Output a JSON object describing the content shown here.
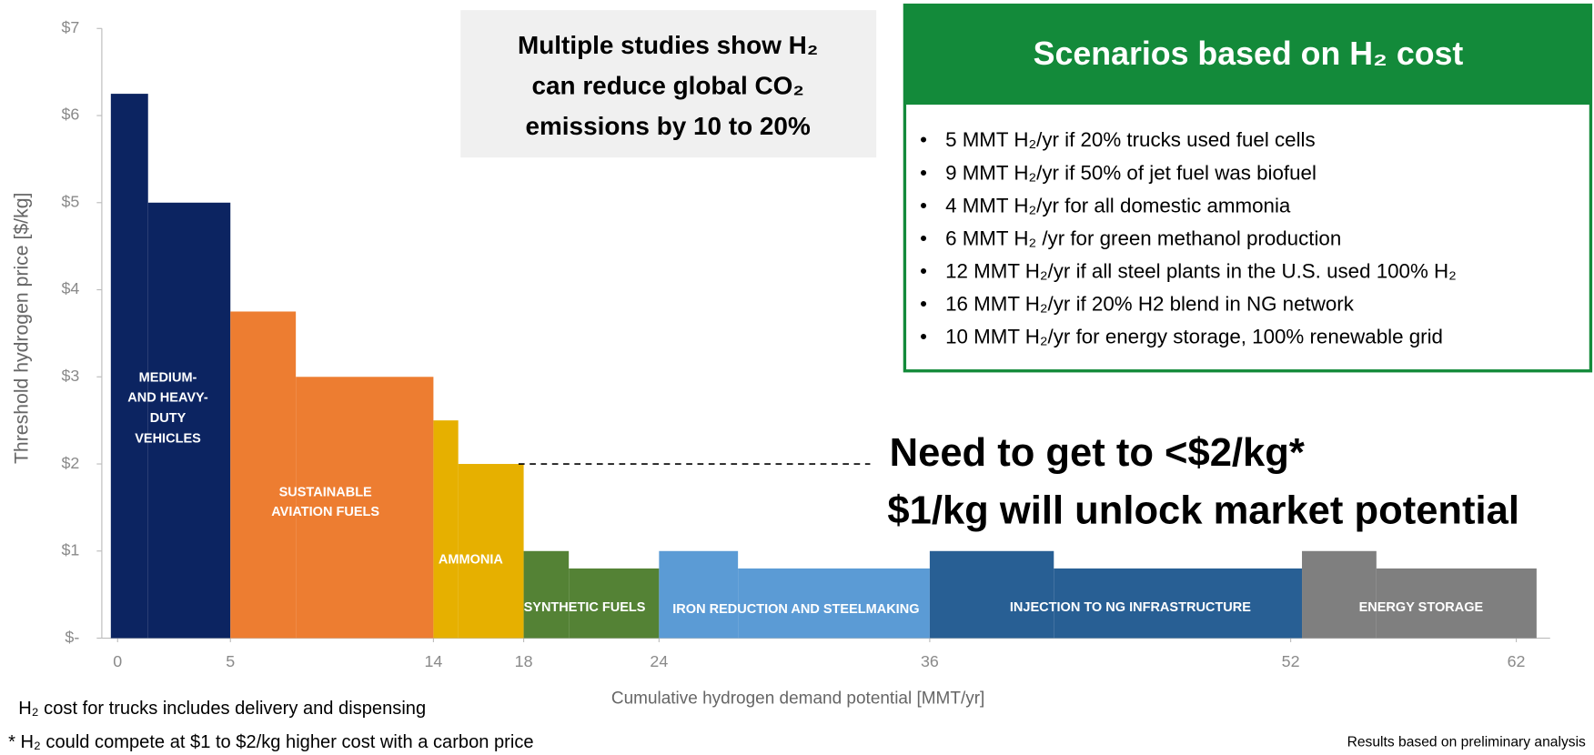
{
  "chart_data": {
    "type": "step-bar",
    "x_label": "Cumulative hydrogen demand potential [MMT/yr]",
    "y_label": "Threshold hydrogen price [$/kg]",
    "xlim": [
      -0.7,
      63.5
    ],
    "xticks": [
      0,
      5,
      14,
      18,
      24,
      36,
      52,
      62
    ],
    "ylim": [
      0,
      7
    ],
    "yticks": [
      {
        "value": 0,
        "label": "$-"
      },
      {
        "value": 1,
        "label": "$1"
      },
      {
        "value": 2,
        "label": "$2"
      },
      {
        "value": 3,
        "label": "$3"
      },
      {
        "value": 4,
        "label": "$4"
      },
      {
        "value": 5,
        "label": "$5"
      },
      {
        "value": 6,
        "label": "$6"
      },
      {
        "value": 7,
        "label": "$7"
      }
    ],
    "series": [
      {
        "name": [
          "MEDIUM-",
          "AND HEAVY-",
          "DUTY",
          "VEHICLES"
        ],
        "color": "#0c2461",
        "bins": [
          -0.3,
          1.35,
          5
        ],
        "values": [
          6.25,
          5
        ]
      },
      {
        "name": [
          "SUSTAINABLE",
          "AVIATION FUELS"
        ],
        "color": "#ed7d31",
        "bins": [
          5,
          7.9,
          14
        ],
        "values": [
          3.75,
          3
        ]
      },
      {
        "name": [
          "AMMONIA"
        ],
        "color": "#e6b000",
        "bins": [
          14,
          15.1,
          18
        ],
        "values": [
          2.5,
          2
        ]
      },
      {
        "name": [
          "SYNTHETIC FUELS"
        ],
        "color": "#548235",
        "bins": [
          18,
          20,
          24
        ],
        "values": [
          1,
          0.8
        ]
      },
      {
        "name": [
          "IRON REDUCTION AND STEELMAKING"
        ],
        "color": "#5b9bd5",
        "bins": [
          24,
          27.5,
          36
        ],
        "values": [
          1,
          0.8
        ]
      },
      {
        "name": [
          "INJECTION TO NG INFRASTRUCTURE"
        ],
        "color": "#285f94",
        "bins": [
          36,
          41.5,
          52.5
        ],
        "values": [
          1,
          0.8
        ]
      },
      {
        "name": [
          "ENERGY STORAGE"
        ],
        "color": "#7f7f7f",
        "bins": [
          52.5,
          55.8,
          62.9
        ],
        "values": [
          1,
          0.8
        ]
      }
    ],
    "reference_line": 2,
    "annotation": [
      "Need to get to <$2/kg*",
      "$1/kg will unlock market potential"
    ],
    "callout": [
      "Multiple studies show H₂",
      "can reduce global CO₂",
      "emissions by 10 to 20%"
    ],
    "scenarios": {
      "title": "Scenarios based on  H₂ cost",
      "items": [
        "5 MMT H₂/yr if 20% trucks used fuel cells",
        "9 MMT H₂/yr  if 50% of jet fuel was biofuel",
        "4 MMT H₂/yr for all domestic ammonia",
        "6 MMT H₂ /yr for green methanol production",
        "12 MMT H₂/yr if all steel plants in the U.S. used 100% H₂",
        "16 MMT H₂/yr if 20% H2 blend in NG network",
        "10 MMT H₂/yr for energy storage, 100% renewable grid"
      ]
    },
    "footnotes": [
      "H₂ cost for trucks includes delivery and dispensing",
      "* H₂ could compete at $1 to $2/kg higher cost with a carbon price"
    ],
    "source": "Results based on preliminary analysis"
  }
}
